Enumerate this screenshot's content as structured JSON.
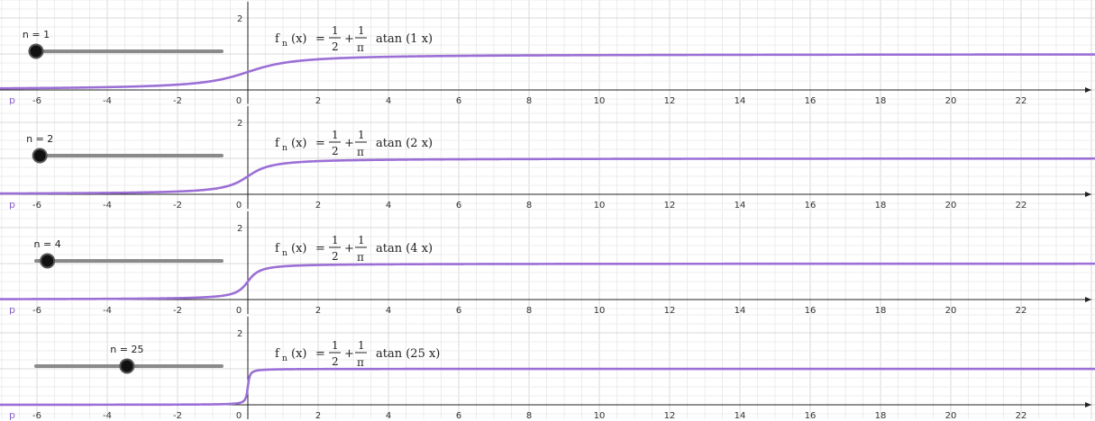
{
  "chart_data": [
    {
      "type": "line",
      "slider": {
        "label": "n = 1",
        "value": 1,
        "min": 1,
        "max": 50
      },
      "formula": {
        "lhs": "f",
        "sub": "n",
        "arg": "(x)",
        "eq": "=",
        "half_num": "1",
        "half_den": "2",
        "plus": "+",
        "inv_num": "1",
        "inv_den": "π",
        "func": "atan",
        "n_text": "1"
      },
      "series": [
        {
          "values": "1/2 + atan(1x)/π",
          "color": "#9b6fd6"
        }
      ],
      "xlim": [
        -6.6,
        23
      ],
      "ylim": [
        -0.2,
        2.1
      ],
      "x_ticks": [
        "-6",
        "-4",
        "-2",
        "0",
        "2",
        "4",
        "6",
        "8",
        "10",
        "12",
        "14",
        "16",
        "18",
        "20",
        "22"
      ],
      "y_ticks": [
        "2"
      ],
      "point_label": "p",
      "grid": true
    },
    {
      "type": "line",
      "slider": {
        "label": "n = 2",
        "value": 2,
        "min": 1,
        "max": 50
      },
      "formula": {
        "lhs": "f",
        "sub": "n",
        "arg": "(x)",
        "eq": "=",
        "half_num": "1",
        "half_den": "2",
        "plus": "+",
        "inv_num": "1",
        "inv_den": "π",
        "func": "atan",
        "n_text": "2"
      },
      "series": [
        {
          "values": "1/2 + atan(2x)/π",
          "color": "#9b6fd6"
        }
      ],
      "xlim": [
        -6.6,
        23
      ],
      "ylim": [
        -0.2,
        2.1
      ],
      "x_ticks": [
        "-6",
        "-4",
        "-2",
        "0",
        "2",
        "4",
        "6",
        "8",
        "10",
        "12",
        "14",
        "16",
        "18",
        "20",
        "22"
      ],
      "y_ticks": [
        "2"
      ],
      "point_label": "p",
      "grid": true
    },
    {
      "type": "line",
      "slider": {
        "label": "n = 4",
        "value": 4,
        "min": 1,
        "max": 50
      },
      "formula": {
        "lhs": "f",
        "sub": "n",
        "arg": "(x)",
        "eq": "=",
        "half_num": "1",
        "half_den": "2",
        "plus": "+",
        "inv_num": "1",
        "inv_den": "π",
        "func": "atan",
        "n_text": "4"
      },
      "series": [
        {
          "values": "1/2 + atan(4x)/π",
          "color": "#9b6fd6"
        }
      ],
      "xlim": [
        -6.6,
        23
      ],
      "ylim": [
        -0.2,
        2.1
      ],
      "x_ticks": [
        "-6",
        "-4",
        "-2",
        "0",
        "2",
        "4",
        "6",
        "8",
        "10",
        "12",
        "14",
        "16",
        "18",
        "20",
        "22"
      ],
      "y_ticks": [
        "2"
      ],
      "point_label": "p",
      "grid": true
    },
    {
      "type": "line",
      "slider": {
        "label": "n = 25",
        "value": 25,
        "min": 1,
        "max": 50
      },
      "formula": {
        "lhs": "f",
        "sub": "n",
        "arg": "(x)",
        "eq": "=",
        "half_num": "1",
        "half_den": "2",
        "plus": "+",
        "inv_num": "1",
        "inv_den": "π",
        "func": "atan",
        "n_text": "25"
      },
      "series": [
        {
          "values": "1/2 + atan(25x)/π",
          "color": "#9b6fd6"
        }
      ],
      "xlim": [
        -6.6,
        23
      ],
      "ylim": [
        -0.2,
        2.1
      ],
      "x_ticks": [
        "-6",
        "-4",
        "-2",
        "0",
        "2",
        "4",
        "6",
        "8",
        "10",
        "12",
        "14",
        "16",
        "18",
        "20",
        "22"
      ],
      "y_ticks": [
        "2"
      ],
      "point_label": "p",
      "grid": true
    }
  ]
}
